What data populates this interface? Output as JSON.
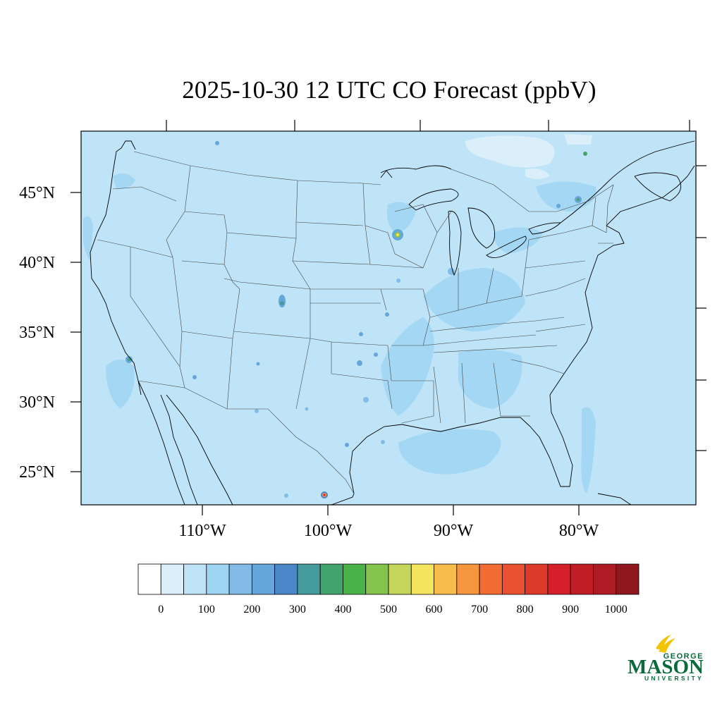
{
  "title": "2025-10-30 12 UTC CO Forecast (ppbV)",
  "map": {
    "background_color": "#bfe3f7",
    "lat_labels": [
      "45°N",
      "40°N",
      "35°N",
      "30°N",
      "25°N"
    ],
    "lon_labels": [
      "110°W",
      "100°W",
      "90°W",
      "80°W"
    ]
  },
  "colorbar": {
    "colors": [
      "#ffffff",
      "#dbeffb",
      "#bfe3f7",
      "#9fd5f3",
      "#82bce6",
      "#66a6da",
      "#4b87c8",
      "#469c9d",
      "#43a36d",
      "#49b349",
      "#85c44c",
      "#c4d65b",
      "#f5e45e",
      "#f6bd4b",
      "#f5963f",
      "#f26b32",
      "#ea5130",
      "#de3a2b",
      "#d51f2a",
      "#c11d27",
      "#ae1b24",
      "#8e161c"
    ],
    "labels": [
      "0",
      "100",
      "200",
      "300",
      "400",
      "500",
      "600",
      "700",
      "800",
      "900",
      "1000"
    ]
  },
  "logo": {
    "top": "GEORGE",
    "main": "MASON",
    "bottom": "UNIVERSITY"
  }
}
